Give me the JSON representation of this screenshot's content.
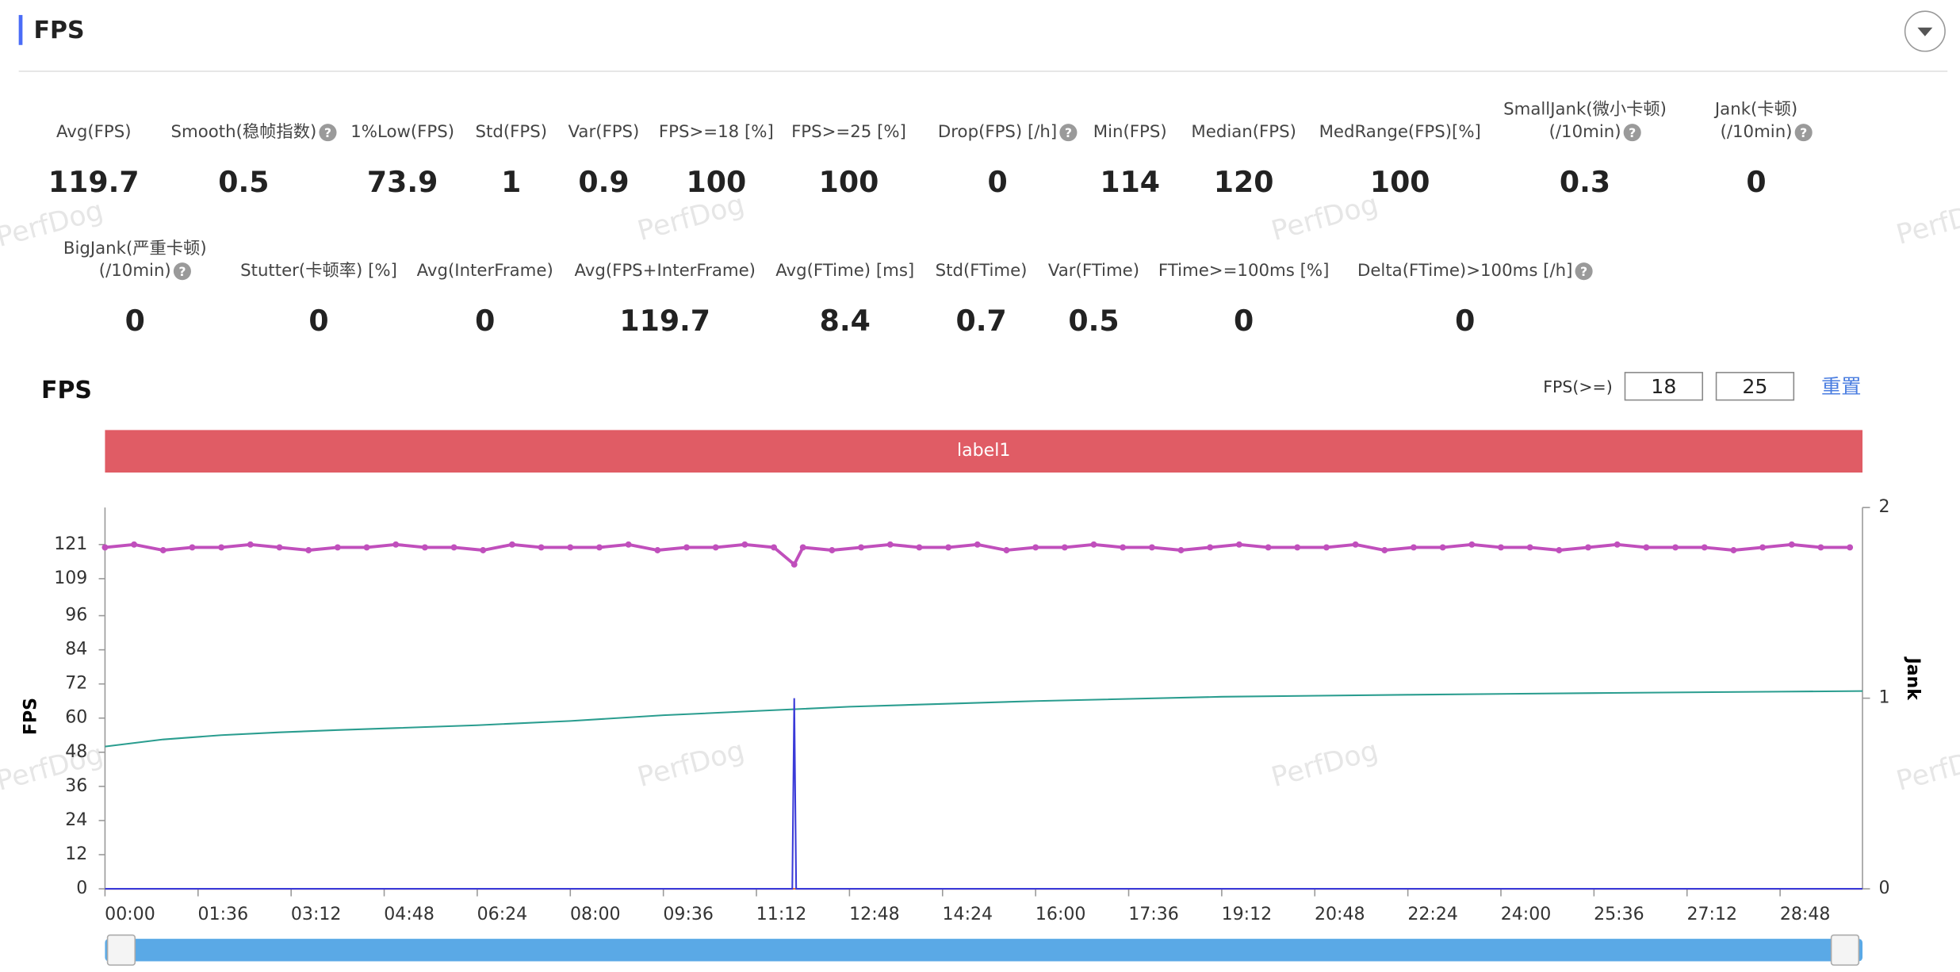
{
  "header": {
    "title": "FPS"
  },
  "watermark": "PerfDog",
  "metrics": [
    [
      {
        "label": [
          "Avg(FPS)"
        ],
        "value": 119.7
      },
      {
        "label": [
          "Smooth(稳帧指数)"
        ],
        "value": 0.5,
        "help": true
      },
      {
        "label": [
          "1%Low(FPS)"
        ],
        "value": 73.9
      },
      {
        "label": [
          "Std(FPS)"
        ],
        "value": 1
      },
      {
        "label": [
          "Var(FPS)"
        ],
        "value": 0.9
      },
      {
        "label": [
          "FPS>=18 [%]"
        ],
        "value": 100
      },
      {
        "label": [
          "FPS>=25 [%]"
        ],
        "value": 100
      },
      {
        "label": [
          "Drop(FPS) [/h]"
        ],
        "value": 0,
        "help": true
      },
      {
        "label": [
          "Min(FPS)"
        ],
        "value": 114
      },
      {
        "label": [
          "Median(FPS)"
        ],
        "value": 120
      },
      {
        "label": [
          "MedRange(FPS)[%]"
        ],
        "value": 100
      },
      {
        "label": [
          "SmallJank(微小卡顿)",
          "(/10min)"
        ],
        "value": 0.3,
        "help": true
      },
      {
        "label": [
          "Jank(卡顿)",
          "(/10min)"
        ],
        "value": 0,
        "help": true
      }
    ],
    [
      {
        "label": [
          "BigJank(严重卡顿)",
          "(/10min)"
        ],
        "value": 0,
        "help": true
      },
      {
        "label": [
          "Stutter(卡顿率) [%]"
        ],
        "value": 0
      },
      {
        "label": [
          "Avg(InterFrame)"
        ],
        "value": 0
      },
      {
        "label": [
          "Avg(FPS+InterFrame)"
        ],
        "value": 119.7
      },
      {
        "label": [
          "Avg(FTime) [ms]"
        ],
        "value": 8.4
      },
      {
        "label": [
          "Std(FTime)"
        ],
        "value": 0.7
      },
      {
        "label": [
          "Var(FTime)"
        ],
        "value": 0.5
      },
      {
        "label": [
          "FTime>=100ms [%]"
        ],
        "value": 0
      },
      {
        "label": [
          "Delta(FTime)>100ms [/h]"
        ],
        "value": 0,
        "help": true
      }
    ]
  ],
  "chart_data": {
    "type": "line",
    "title": "FPS",
    "ylabel": "FPS",
    "y2label": "Jank",
    "threshold_label": "FPS(>=)",
    "thresholds": [
      18,
      25
    ],
    "reset": "重置",
    "band": {
      "label": "label1",
      "color": "#e05c65"
    },
    "xlim": [
      0,
      1813
    ],
    "xticks": [
      {
        "value": 0,
        "label": "00:00"
      },
      {
        "value": 96,
        "label": "01:36"
      },
      {
        "value": 192,
        "label": "03:12"
      },
      {
        "value": 288,
        "label": "04:48"
      },
      {
        "value": 384,
        "label": "06:24"
      },
      {
        "value": 480,
        "label": "08:00"
      },
      {
        "value": 576,
        "label": "09:36"
      },
      {
        "value": 672,
        "label": "11:12"
      },
      {
        "value": 768,
        "label": "12:48"
      },
      {
        "value": 864,
        "label": "14:24"
      },
      {
        "value": 960,
        "label": "16:00"
      },
      {
        "value": 1056,
        "label": "17:36"
      },
      {
        "value": 1152,
        "label": "19:12"
      },
      {
        "value": 1248,
        "label": "20:48"
      },
      {
        "value": 1344,
        "label": "22:24"
      },
      {
        "value": 1440,
        "label": "24:00"
      },
      {
        "value": 1536,
        "label": "25:36"
      },
      {
        "value": 1632,
        "label": "27:12"
      },
      {
        "value": 1728,
        "label": "28:48"
      }
    ],
    "ylim": [
      0,
      134
    ],
    "yticks": [
      0,
      12,
      24,
      36,
      48,
      60,
      72,
      84,
      96,
      109,
      121
    ],
    "y2lim": [
      0,
      2
    ],
    "y2ticks": [
      0,
      1,
      2
    ],
    "series": [
      {
        "color": "#c04fbc",
        "marker": true,
        "x": [
          0,
          30,
          60,
          90,
          120,
          150,
          180,
          210,
          240,
          270,
          300,
          330,
          360,
          390,
          420,
          450,
          480,
          510,
          540,
          570,
          600,
          630,
          660,
          690,
          711,
          720,
          750,
          780,
          810,
          840,
          870,
          900,
          930,
          960,
          990,
          1020,
          1050,
          1080,
          1110,
          1140,
          1170,
          1200,
          1230,
          1260,
          1290,
          1320,
          1350,
          1380,
          1410,
          1440,
          1470,
          1500,
          1530,
          1560,
          1590,
          1620,
          1650,
          1680,
          1710,
          1740,
          1770,
          1800
        ],
        "values": [
          120,
          121,
          119,
          120,
          120,
          121,
          120,
          119,
          120,
          120,
          121,
          120,
          120,
          119,
          121,
          120,
          120,
          120,
          121,
          119,
          120,
          120,
          121,
          120,
          114,
          120,
          119,
          120,
          121,
          120,
          120,
          121,
          119,
          120,
          120,
          121,
          120,
          120,
          119,
          120,
          121,
          120,
          120,
          120,
          121,
          119,
          120,
          120,
          121,
          120,
          120,
          119,
          120,
          121,
          120,
          120,
          120,
          119,
          120,
          121,
          120,
          120
        ]
      },
      {
        "color": "#2a9d8f",
        "x": [
          0,
          60,
          120,
          180,
          240,
          300,
          384,
          480,
          576,
          672,
          768,
          864,
          960,
          1152,
          1344,
          1536,
          1728,
          1813
        ],
        "values": [
          50,
          52.5,
          54,
          55,
          55.8,
          56.5,
          57.5,
          59,
          61,
          62.5,
          64,
          65,
          66,
          67.5,
          68.2,
          68.8,
          69.3,
          69.5
        ]
      },
      {
        "color": "#e8743b",
        "axis": "y2",
        "x": [
          0,
          1813
        ],
        "values": [
          0,
          0
        ]
      },
      {
        "color": "#3a3ad8",
        "axis": "y2",
        "x": [
          0,
          709,
          711,
          713,
          1813
        ],
        "values": [
          0,
          0,
          1,
          0,
          0
        ]
      }
    ]
  }
}
